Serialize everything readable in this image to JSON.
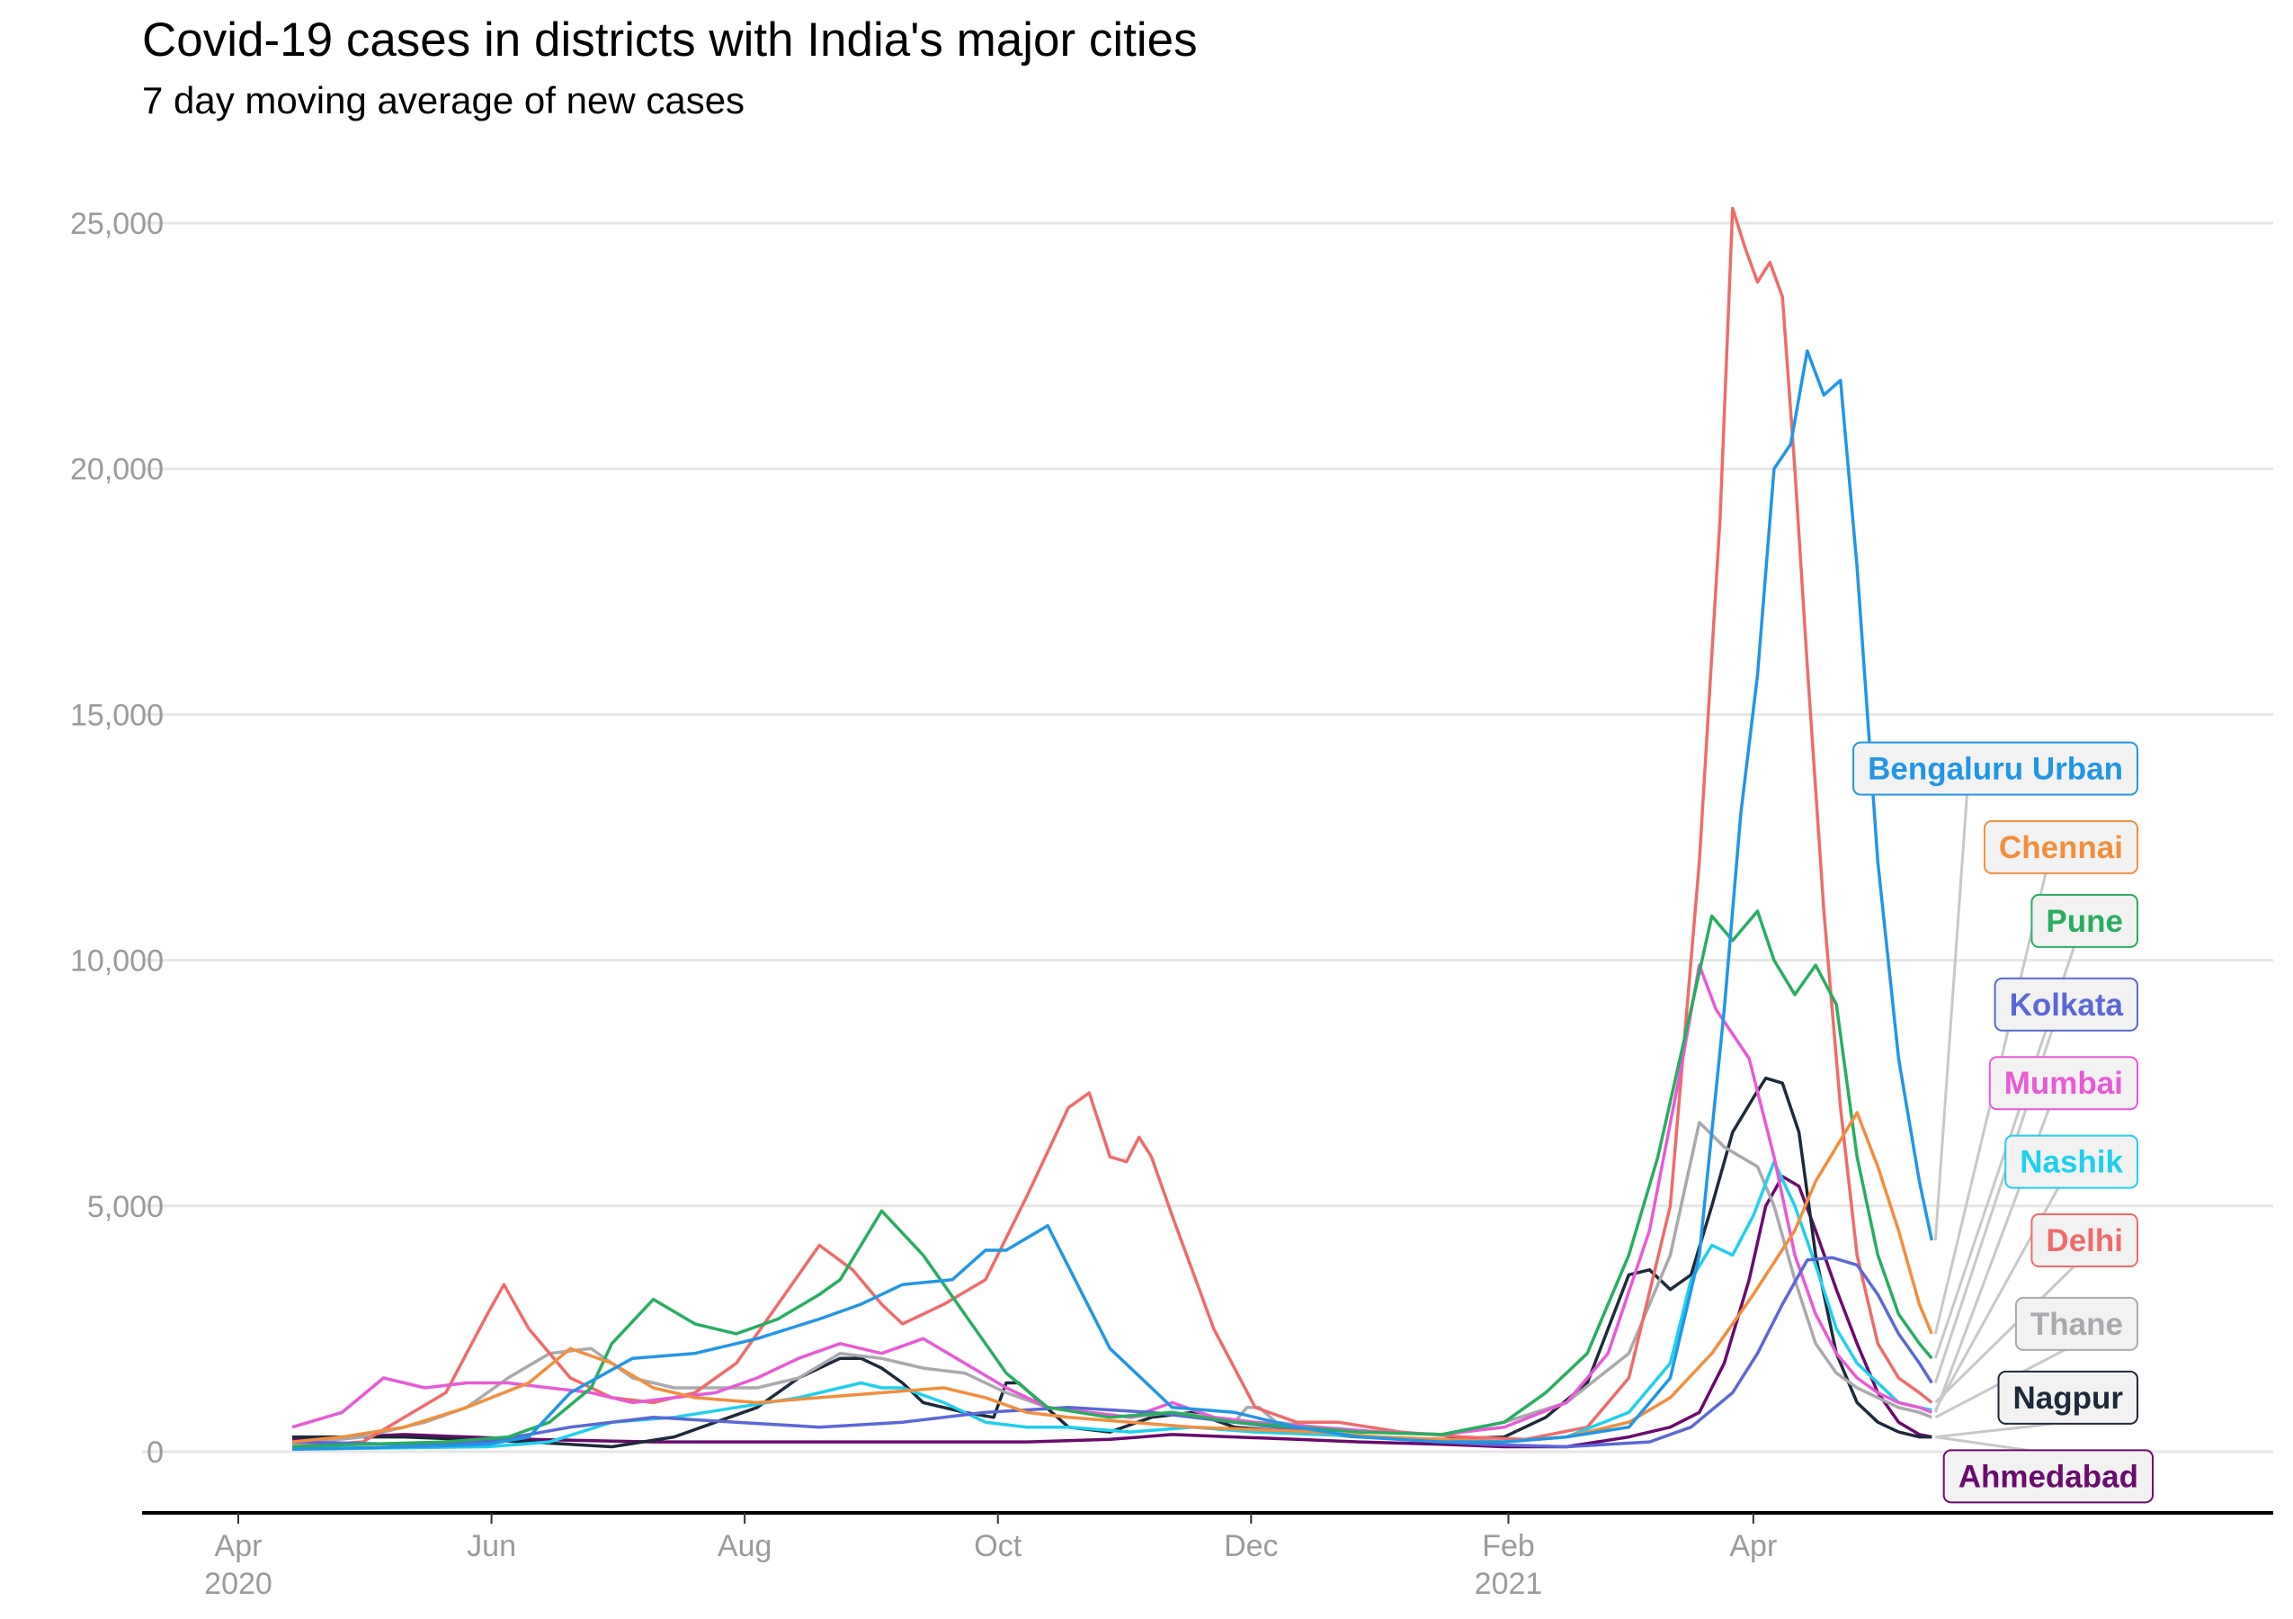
{
  "header": {
    "title": "Covid-19 cases in districts with India's major cities",
    "subtitle": "7 day moving average of new cases"
  },
  "chart_data": {
    "type": "line",
    "title": "Covid-19 cases in districts with India's major cities",
    "subtitle": "7 day moving average of new cases",
    "xlabel": "",
    "ylabel": "",
    "x_unit": "days since 2020-04-01",
    "xlim": [
      -10,
      470
    ],
    "ylim": [
      -1200,
      25800
    ],
    "grid": true,
    "legend": "direct labels at right",
    "y_ticks": [
      {
        "value": 0,
        "label": "0"
      },
      {
        "value": 5000,
        "label": "5,000"
      },
      {
        "value": 10000,
        "label": "10,000"
      },
      {
        "value": 15000,
        "label": "15,000"
      },
      {
        "value": 20000,
        "label": "20,000"
      },
      {
        "value": 25000,
        "label": "25,000"
      }
    ],
    "x_ticks": [
      {
        "value": 0,
        "label": "Apr",
        "sub": "2020"
      },
      {
        "value": 61,
        "label": "Jun",
        "sub": ""
      },
      {
        "value": 122,
        "label": "Aug",
        "sub": ""
      },
      {
        "value": 183,
        "label": "Oct",
        "sub": ""
      },
      {
        "value": 244,
        "label": "Dec",
        "sub": ""
      },
      {
        "value": 306,
        "label": "Feb",
        "sub": "2021"
      },
      {
        "value": 365,
        "label": "Apr",
        "sub": ""
      }
    ],
    "series": [
      {
        "name": "Bengaluru Urban",
        "color": "#2196e6",
        "label_value": 13900,
        "x": [
          13,
          30,
          50,
          60,
          70,
          80,
          95,
          110,
          125,
          140,
          150,
          160,
          172,
          180,
          185,
          195,
          210,
          225,
          240,
          255,
          270,
          290,
          305,
          320,
          335,
          345,
          352,
          358,
          362,
          366,
          370,
          374,
          378,
          382,
          386,
          390,
          395,
          400,
          405,
          408
        ],
        "y": [
          50,
          80,
          120,
          150,
          300,
          1200,
          1900,
          2000,
          2300,
          2700,
          3000,
          3400,
          3500,
          4100,
          4100,
          4600,
          2100,
          900,
          800,
          500,
          300,
          200,
          200,
          300,
          500,
          1500,
          4000,
          9000,
          13000,
          15800,
          20000,
          20500,
          22400,
          21500,
          21800,
          18000,
          12000,
          8000,
          5500,
          4300
        ]
      },
      {
        "name": "Chennai",
        "color": "#f28e3c",
        "label_value": 12300,
        "x": [
          13,
          25,
          40,
          55,
          70,
          80,
          90,
          100,
          110,
          125,
          140,
          155,
          170,
          180,
          190,
          200,
          215,
          230,
          245,
          260,
          275,
          290,
          305,
          320,
          335,
          345,
          355,
          365,
          375,
          380,
          385,
          390,
          395,
          400,
          405,
          408
        ],
        "y": [
          200,
          300,
          500,
          900,
          1400,
          2100,
          1800,
          1300,
          1100,
          1000,
          1100,
          1200,
          1300,
          1100,
          800,
          700,
          600,
          500,
          450,
          400,
          300,
          250,
          200,
          300,
          600,
          1100,
          2000,
          3200,
          4500,
          5500,
          6200,
          6900,
          5800,
          4500,
          3000,
          2400
        ]
      },
      {
        "name": "Pune",
        "color": "#27ae60",
        "label_value": 10800,
        "x": [
          13,
          30,
          50,
          65,
          75,
          85,
          90,
          100,
          110,
          120,
          130,
          140,
          145,
          155,
          165,
          175,
          185,
          195,
          210,
          225,
          240,
          255,
          270,
          290,
          305,
          315,
          325,
          335,
          342,
          350,
          355,
          360,
          363,
          366,
          370,
          375,
          380,
          385,
          390,
          395,
          400,
          405,
          408
        ],
        "y": [
          100,
          150,
          200,
          300,
          600,
          1300,
          2200,
          3100,
          2600,
          2400,
          2700,
          3200,
          3500,
          4900,
          4000,
          2800,
          1600,
          900,
          700,
          800,
          600,
          500,
          400,
          350,
          600,
          1200,
          2000,
          4000,
          6000,
          9000,
          10900,
          10400,
          10700,
          11000,
          10000,
          9300,
          9900,
          9100,
          6000,
          4000,
          2800,
          2200,
          1900
        ]
      },
      {
        "name": "Kolkata",
        "color": "#5b68d6",
        "label_value": 9100,
        "x": [
          13,
          40,
          60,
          80,
          100,
          120,
          140,
          160,
          180,
          200,
          220,
          240,
          260,
          280,
          300,
          320,
          340,
          350,
          360,
          366,
          372,
          378,
          384,
          390,
          395,
          400,
          405,
          408
        ],
        "y": [
          200,
          150,
          200,
          500,
          700,
          600,
          500,
          600,
          800,
          900,
          800,
          600,
          400,
          250,
          150,
          100,
          200,
          500,
          1200,
          2000,
          3000,
          3900,
          3950,
          3800,
          3200,
          2400,
          1800,
          1400
        ]
      },
      {
        "name": "Mumbai",
        "color": "#e85ad6",
        "label_value": 7500,
        "x": [
          13,
          25,
          35,
          45,
          55,
          65,
          75,
          85,
          95,
          105,
          115,
          125,
          135,
          145,
          155,
          165,
          175,
          185,
          195,
          205,
          215,
          225,
          235,
          245,
          260,
          275,
          290,
          305,
          320,
          330,
          340,
          348,
          352,
          356,
          360,
          364,
          370,
          375,
          380,
          385,
          390,
          395,
          400,
          405,
          408
        ],
        "y": [
          500,
          800,
          1500,
          1300,
          1400,
          1400,
          1300,
          1200,
          1000,
          1100,
          1200,
          1500,
          1900,
          2200,
          2000,
          2300,
          1800,
          1300,
          900,
          800,
          700,
          1000,
          700,
          600,
          500,
          400,
          350,
          500,
          1000,
          2000,
          4500,
          8000,
          9900,
          9000,
          8500,
          8000,
          6000,
          4000,
          2800,
          2000,
          1500,
          1200,
          1000,
          900,
          800
        ]
      },
      {
        "name": "Nashik",
        "color": "#1fd0ee",
        "label_value": 5900,
        "x": [
          13,
          40,
          60,
          75,
          90,
          105,
          120,
          135,
          145,
          150,
          155,
          160,
          170,
          180,
          190,
          200,
          215,
          230,
          245,
          260,
          275,
          290,
          305,
          320,
          335,
          345,
          350,
          355,
          360,
          365,
          370,
          375,
          380,
          385,
          390,
          395,
          400,
          405,
          408
        ],
        "y": [
          50,
          80,
          100,
          200,
          600,
          700,
          900,
          1100,
          1300,
          1400,
          1300,
          1300,
          1000,
          600,
          500,
          500,
          400,
          500,
          400,
          350,
          300,
          250,
          200,
          300,
          800,
          1800,
          3500,
          4200,
          4000,
          4800,
          5900,
          5000,
          3800,
          2500,
          1800,
          1400,
          1000,
          900,
          850
        ]
      },
      {
        "name": "Delhi",
        "color": "#ef6b6b",
        "label_value": 4300,
        "x": [
          13,
          30,
          50,
          60,
          64,
          70,
          80,
          90,
          100,
          110,
          120,
          130,
          140,
          148,
          155,
          160,
          170,
          180,
          190,
          200,
          205,
          210,
          214,
          217,
          220,
          225,
          235,
          245,
          255,
          265,
          280,
          295,
          310,
          325,
          335,
          345,
          352,
          357,
          360,
          363,
          366,
          369,
          372,
          375,
          378,
          382,
          386,
          390,
          395,
          400,
          405,
          408
        ],
        "y": [
          100,
          200,
          1200,
          2800,
          3400,
          2500,
          1500,
          1100,
          1000,
          1200,
          1800,
          3000,
          4200,
          3700,
          3000,
          2600,
          3000,
          3500,
          5200,
          7000,
          7300,
          6000,
          5900,
          6400,
          6000,
          4800,
          2500,
          900,
          600,
          600,
          400,
          300,
          250,
          500,
          1500,
          5000,
          12000,
          19000,
          25300,
          24500,
          23800,
          24200,
          23500,
          20000,
          16000,
          11000,
          7000,
          4000,
          2200,
          1500,
          1200,
          1000
        ]
      },
      {
        "name": "Thane",
        "color": "#a9a9ae",
        "label_value": 2600,
        "x": [
          13,
          30,
          45,
          55,
          65,
          75,
          85,
          95,
          105,
          115,
          125,
          135,
          145,
          155,
          165,
          175,
          185,
          195,
          205,
          215,
          225,
          235,
          240,
          243,
          246,
          250,
          260,
          275,
          290,
          305,
          320,
          335,
          345,
          352,
          358,
          362,
          366,
          370,
          375,
          380,
          385,
          390,
          395,
          400,
          405,
          408
        ],
        "y": [
          150,
          300,
          600,
          900,
          1500,
          2000,
          2100,
          1500,
          1300,
          1300,
          1300,
          1500,
          2000,
          1900,
          1700,
          1600,
          1200,
          900,
          800,
          700,
          800,
          700,
          600,
          900,
          900,
          600,
          500,
          400,
          350,
          600,
          1000,
          2000,
          4000,
          6700,
          6200,
          6000,
          5800,
          5000,
          3500,
          2200,
          1600,
          1300,
          1100,
          900,
          800,
          700
        ]
      },
      {
        "name": "Nagpur",
        "color": "#1d2a3a",
        "label_value": 1100,
        "x": [
          13,
          40,
          70,
          90,
          105,
          115,
          125,
          135,
          145,
          150,
          155,
          160,
          165,
          175,
          182,
          185,
          188,
          200,
          210,
          220,
          230,
          240,
          255,
          270,
          290,
          305,
          315,
          325,
          335,
          340,
          345,
          350,
          355,
          360,
          365,
          368,
          372,
          376,
          380,
          385,
          390,
          395,
          400,
          405,
          408
        ],
        "y": [
          300,
          300,
          200,
          100,
          300,
          600,
          900,
          1500,
          1900,
          1900,
          1700,
          1400,
          1000,
          800,
          700,
          1400,
          1400,
          500,
          400,
          700,
          800,
          500,
          400,
          300,
          250,
          300,
          700,
          1400,
          3600,
          3700,
          3300,
          3600,
          5000,
          6500,
          7200,
          7600,
          7500,
          6500,
          4000,
          2000,
          1000,
          600,
          400,
          300,
          300
        ]
      },
      {
        "name": "Ahmedabad",
        "color": "#6a0a6e",
        "label_value": -500,
        "x": [
          13,
          40,
          70,
          100,
          130,
          160,
          190,
          210,
          225,
          240,
          255,
          270,
          290,
          305,
          320,
          335,
          345,
          352,
          358,
          364,
          368,
          372,
          376,
          380,
          385,
          390,
          395,
          400,
          405,
          408
        ],
        "y": [
          250,
          350,
          250,
          200,
          200,
          200,
          200,
          250,
          350,
          300,
          250,
          200,
          150,
          100,
          100,
          300,
          500,
          800,
          1800,
          3500,
          5000,
          5600,
          5400,
          4500,
          3300,
          2200,
          1200,
          600,
          350,
          300
        ]
      }
    ]
  }
}
